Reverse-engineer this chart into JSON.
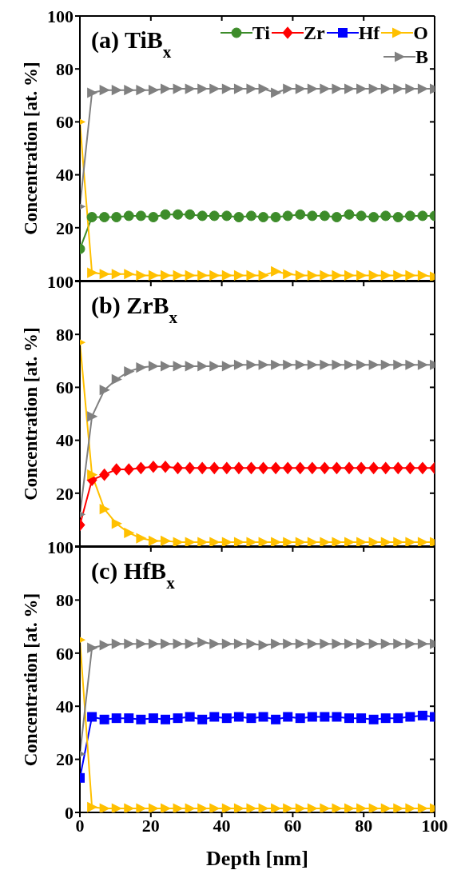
{
  "chart_data": [
    {
      "type": "line",
      "title": "(a) TiB$_{x}$",
      "ylabel": "Concentration [at. %]",
      "x": [
        0,
        3.4,
        6.9,
        10.3,
        13.8,
        17.2,
        20.7,
        24.1,
        27.6,
        31,
        34.5,
        37.9,
        41.4,
        44.8,
        48.3,
        51.7,
        55.2,
        58.6,
        62.1,
        65.5,
        69,
        72.4,
        75.9,
        79.3,
        82.8,
        86.2,
        89.7,
        93.1,
        96.6,
        100
      ],
      "xlim": [
        0,
        100
      ],
      "xticks": [
        0,
        20,
        40,
        60,
        80,
        100
      ],
      "ylim": [
        0,
        100
      ],
      "yticks": [
        {
          "value": 0,
          "label": null
        },
        20,
        40,
        60,
        80,
        100
      ],
      "tick_labels": "y",
      "legend": "top right",
      "line_style": "solid",
      "series": [
        {
          "name": "Ti",
          "color": "#3d8c2a",
          "marker": "circle",
          "values": [
            12,
            24,
            24,
            24,
            24.5,
            24.5,
            24,
            25,
            25,
            25,
            24.5,
            24.5,
            24.5,
            24,
            24.5,
            24,
            24,
            24.5,
            25,
            24.5,
            24.5,
            24,
            25,
            24.5,
            24,
            24.5,
            24,
            24.5,
            24.5,
            24.5
          ]
        },
        {
          "name": "Zr",
          "color": "#ff0000",
          "marker": "diamond",
          "values": [
            null,
            null,
            null,
            null,
            null,
            null,
            null,
            null,
            null,
            null,
            null,
            null,
            null,
            null,
            null,
            null,
            null,
            null,
            null,
            null,
            null,
            null,
            null,
            null,
            null,
            null,
            null,
            null,
            null,
            null
          ]
        },
        {
          "name": "Hf",
          "color": "#0000ff",
          "marker": "square",
          "values": [
            null,
            null,
            null,
            null,
            null,
            null,
            null,
            null,
            null,
            null,
            null,
            null,
            null,
            null,
            null,
            null,
            null,
            null,
            null,
            null,
            null,
            null,
            null,
            null,
            null,
            null,
            null,
            null,
            null,
            null
          ]
        },
        {
          "name": "O",
          "color": "#ffc000",
          "marker": "triangle",
          "values": [
            60,
            3,
            2.5,
            2.5,
            2.5,
            2,
            2,
            2,
            2,
            2,
            2,
            2,
            2,
            2,
            2,
            2,
            3.5,
            2.5,
            2,
            2,
            2,
            2,
            2,
            2,
            2,
            2,
            2,
            2,
            2,
            1.5
          ]
        },
        {
          "name": "B",
          "color": "#808080",
          "marker": "triangle",
          "values": [
            28,
            71,
            72,
            72,
            72,
            72,
            72,
            72.5,
            72.5,
            72.5,
            72.5,
            72.5,
            72.5,
            72.5,
            72.5,
            72.5,
            71,
            72.5,
            72.5,
            72.5,
            72.5,
            72.5,
            72.5,
            72.5,
            72.5,
            72.5,
            72.5,
            72.5,
            72.5,
            72.5
          ]
        }
      ]
    },
    {
      "type": "line",
      "title": "(b) ZrB$_{x}$",
      "ylabel": "Concentration [at. %]",
      "x": [
        0,
        3.4,
        6.9,
        10.3,
        13.8,
        17.2,
        20.7,
        24.1,
        27.6,
        31,
        34.5,
        37.9,
        41.4,
        44.8,
        48.3,
        51.7,
        55.2,
        58.6,
        62.1,
        65.5,
        69,
        72.4,
        75.9,
        79.3,
        82.8,
        86.2,
        89.7,
        93.1,
        96.6,
        100
      ],
      "xlim": [
        0,
        100
      ],
      "xticks": [
        0,
        20,
        40,
        60,
        80,
        100
      ],
      "ylim": [
        0,
        100
      ],
      "yticks": [
        {
          "value": 0,
          "label": null
        },
        20,
        40,
        60,
        80,
        100
      ],
      "tick_labels": "y",
      "line_style": "solid",
      "series": [
        {
          "color": "#ff0000",
          "marker": "diamond",
          "values": [
            8,
            25,
            27,
            29,
            29,
            29.5,
            30,
            30,
            29.5,
            29.5,
            29.5,
            29.5,
            29.5,
            29.5,
            29.5,
            29.5,
            29.5,
            29.5,
            29.5,
            29.5,
            29.5,
            29.5,
            29.5,
            29.5,
            29.5,
            29.5,
            29.5,
            29.5,
            29.5,
            29.5
          ]
        },
        {
          "color": "#ffc000",
          "marker": "triangle",
          "values": [
            77,
            27,
            14,
            8.5,
            5,
            3,
            2,
            2,
            1.5,
            1.5,
            1.5,
            1.5,
            1.5,
            1.5,
            1.5,
            1.5,
            1.5,
            1.5,
            1.5,
            1.5,
            1.5,
            1.5,
            1.5,
            1.5,
            1.5,
            1.5,
            1.5,
            1.5,
            1.5,
            1.5
          ]
        },
        {
          "color": "#808080",
          "marker": "triangle",
          "values": [
            12,
            49,
            59,
            63,
            66,
            67.5,
            68,
            68,
            68,
            68,
            68,
            68,
            68,
            68.5,
            68.5,
            68.5,
            68.5,
            68.5,
            68.5,
            68.5,
            68.5,
            68.5,
            68.5,
            68.5,
            68.5,
            68.5,
            68.5,
            68.5,
            68.5,
            68.5
          ]
        }
      ]
    },
    {
      "type": "line",
      "title": "(c) HfB$_{x}$",
      "ylabel": "Concentration [at. %]",
      "xlabel": "Depth [nm]",
      "x": [
        0,
        3.4,
        6.9,
        10.3,
        13.8,
        17.2,
        20.7,
        24.1,
        27.6,
        31,
        34.5,
        37.9,
        41.4,
        44.8,
        48.3,
        51.7,
        55.2,
        58.6,
        62.1,
        65.5,
        69,
        72.4,
        75.9,
        79.3,
        82.8,
        86.2,
        89.7,
        93.1,
        96.6,
        100
      ],
      "xlim": [
        0,
        100
      ],
      "xticks": [
        0,
        20,
        40,
        60,
        80,
        100
      ],
      "ylim": [
        0,
        100
      ],
      "yticks": [
        0,
        20,
        40,
        60,
        80,
        100
      ],
      "line_style": "solid",
      "series": [
        {
          "color": "#0000ff",
          "marker": "square",
          "values": [
            13,
            36,
            35,
            35.5,
            35.5,
            35,
            35.5,
            35,
            35.5,
            36,
            35,
            36,
            35.5,
            36,
            35.5,
            36,
            35,
            36,
            35.5,
            36,
            36,
            36,
            35.5,
            35.5,
            35,
            35.5,
            35.5,
            36,
            36.5,
            36
          ]
        },
        {
          "color": "#ffc000",
          "marker": "triangle",
          "values": [
            65,
            2,
            1.5,
            1.5,
            1.5,
            1.5,
            1.5,
            1.5,
            1.5,
            1.5,
            1.5,
            1.5,
            1.5,
            1.5,
            1.5,
            1.5,
            1.5,
            1.5,
            1.5,
            1.5,
            1.5,
            1.5,
            1.5,
            1.5,
            1.5,
            1.5,
            1.5,
            1.5,
            1.5,
            1.5
          ]
        },
        {
          "color": "#808080",
          "marker": "triangle",
          "values": [
            22,
            62,
            63,
            63.5,
            63.5,
            63.5,
            63.5,
            63.5,
            63.5,
            63.5,
            64,
            63.5,
            63.5,
            63.5,
            63.5,
            63,
            63.5,
            63.5,
            63.5,
            63.5,
            63.5,
            63.5,
            63.5,
            63.5,
            63.5,
            63.5,
            63.5,
            63.5,
            63.5,
            63.5
          ]
        }
      ]
    }
  ]
}
